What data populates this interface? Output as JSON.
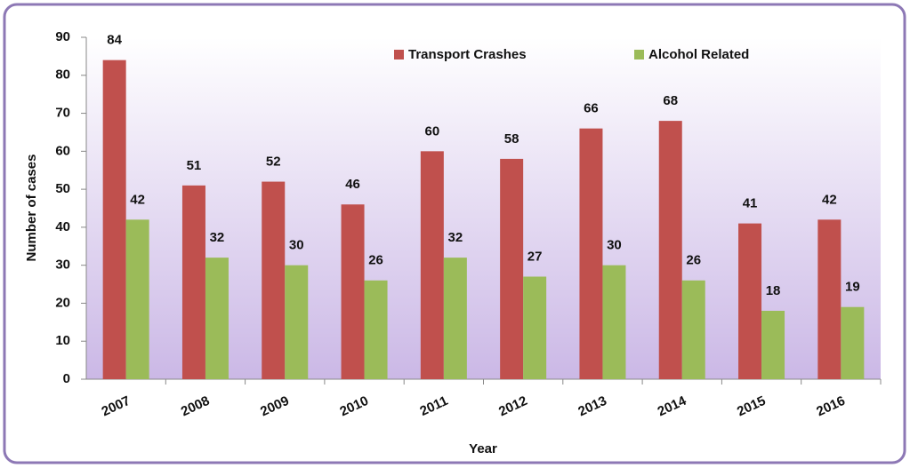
{
  "chart_data": {
    "type": "bar",
    "x_label": "Year",
    "y_label": "Number of cases",
    "categories": [
      "2007",
      "2008",
      "2009",
      "2010",
      "2011",
      "2012",
      "2013",
      "2014",
      "2015",
      "2016"
    ],
    "series": [
      {
        "name": "Transport Crashes",
        "color": "#c0504d",
        "values": [
          84,
          51,
          52,
          46,
          60,
          58,
          66,
          68,
          41,
          42
        ]
      },
      {
        "name": "Alcohol Related",
        "color": "#9bbb59",
        "values": [
          42,
          32,
          30,
          26,
          32,
          27,
          30,
          26,
          18,
          19
        ]
      }
    ],
    "ylim": [
      0,
      90
    ],
    "yticks": [
      0,
      10,
      20,
      30,
      40,
      50,
      60,
      70,
      80,
      90
    ],
    "grid": false
  }
}
